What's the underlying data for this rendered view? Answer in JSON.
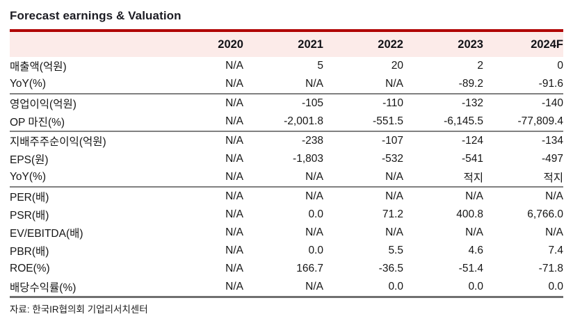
{
  "title": "Forecast earnings & Valuation",
  "source_note": "자료: 한국IR협의회 기업리서치센터",
  "colors": {
    "accent_red": "#b00000",
    "header_bg": "#fcebe9",
    "separator_gray": "#808080",
    "bottom_border": "#6f6f6f",
    "text": "#1a1a1a"
  },
  "chart_data": {
    "type": "table",
    "title": "Forecast earnings & Valuation",
    "columns": [
      "",
      "2020",
      "2021",
      "2022",
      "2023",
      "2024F"
    ],
    "rows": [
      {
        "label": "매출액(억원)",
        "values": [
          "N/A",
          "5",
          "20",
          "2",
          "0"
        ],
        "separator_after": false
      },
      {
        "label": "YoY(%)",
        "values": [
          "N/A",
          "N/A",
          "N/A",
          "-89.2",
          "-91.6"
        ],
        "separator_after": true
      },
      {
        "label": "영업이익(억원)",
        "values": [
          "N/A",
          "-105",
          "-110",
          "-132",
          "-140"
        ],
        "separator_after": false
      },
      {
        "label": "OP 마진(%)",
        "values": [
          "N/A",
          "-2,001.8",
          "-551.5",
          "-6,145.5",
          "-77,809.4"
        ],
        "separator_after": true
      },
      {
        "label": "지배주주순이익(억원)",
        "values": [
          "N/A",
          "-238",
          "-107",
          "-124",
          "-134"
        ],
        "separator_after": false
      },
      {
        "label": "EPS(원)",
        "values": [
          "N/A",
          "-1,803",
          "-532",
          "-541",
          "-497"
        ],
        "separator_after": false
      },
      {
        "label": "YoY(%)",
        "values": [
          "N/A",
          "N/A",
          "N/A",
          "적지",
          "적지"
        ],
        "separator_after": true
      },
      {
        "label": "PER(배)",
        "values": [
          "N/A",
          "N/A",
          "N/A",
          "N/A",
          "N/A"
        ],
        "separator_after": false
      },
      {
        "label": "PSR(배)",
        "values": [
          "N/A",
          "0.0",
          "71.2",
          "400.8",
          "6,766.0"
        ],
        "separator_after": false
      },
      {
        "label": "EV/EBITDA(배)",
        "values": [
          "N/A",
          "N/A",
          "N/A",
          "N/A",
          "N/A"
        ],
        "separator_after": false
      },
      {
        "label": "PBR(배)",
        "values": [
          "N/A",
          "0.0",
          "5.5",
          "4.6",
          "7.4"
        ],
        "separator_after": false
      },
      {
        "label": "ROE(%)",
        "values": [
          "N/A",
          "166.7",
          "-36.5",
          "-51.4",
          "-71.8"
        ],
        "separator_after": false
      },
      {
        "label": "배당수익률(%)",
        "values": [
          "N/A",
          "N/A",
          "0.0",
          "0.0",
          "0.0"
        ],
        "separator_after": false
      }
    ]
  }
}
